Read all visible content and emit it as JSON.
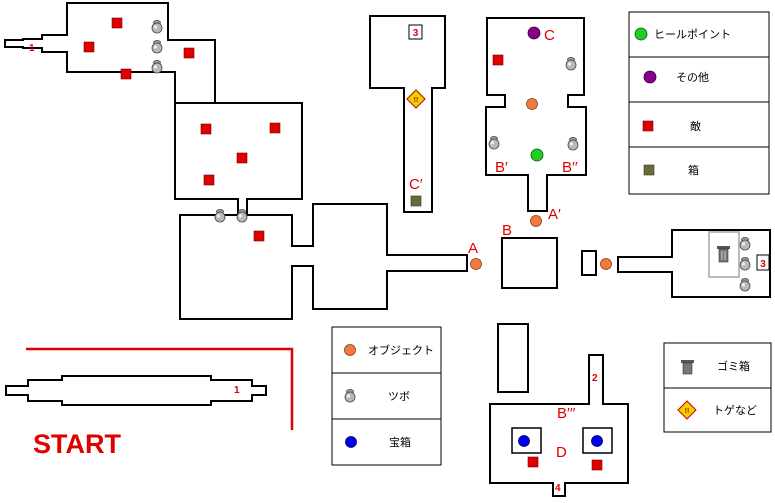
{
  "start_label": "START",
  "labels": {
    "a": "A",
    "a_prime": "A′",
    "b": "B",
    "b_prime": "B′",
    "b_dprime": "B′′",
    "b_tprime": "B′′′",
    "c": "C",
    "c_prime": "C′",
    "d": "D"
  },
  "markers": {
    "n1_top": "1",
    "n1_start": "1",
    "n2": "2",
    "n3_top": "3",
    "n3_right": "3",
    "n4": "4",
    "spike": "!!"
  },
  "legend_top": [
    {
      "label": "ヒールポイント",
      "icon": "heal-point-icon",
      "color": "#22cc22"
    },
    {
      "label": "その他",
      "icon": "other-icon",
      "color": "#880088"
    },
    {
      "label": "敵",
      "icon": "enemy-icon",
      "color": "#e00000"
    },
    {
      "label": "箱",
      "icon": "box-icon",
      "color": "#6b6b3a"
    }
  ],
  "legend_mid": [
    {
      "label": "オブジェクト",
      "icon": "object-icon",
      "color": "#f07a40"
    },
    {
      "label": "ツボ",
      "icon": "pot-icon",
      "color": "#a0a0a0"
    },
    {
      "label": "宝箱",
      "icon": "treasure-icon",
      "color": "#0000ee"
    }
  ],
  "legend_right": [
    {
      "label": "ゴミ箱",
      "icon": "trash-can-icon"
    },
    {
      "label": "トゲなど",
      "icon": "spike-icon",
      "color": "#f0d000"
    }
  ]
}
